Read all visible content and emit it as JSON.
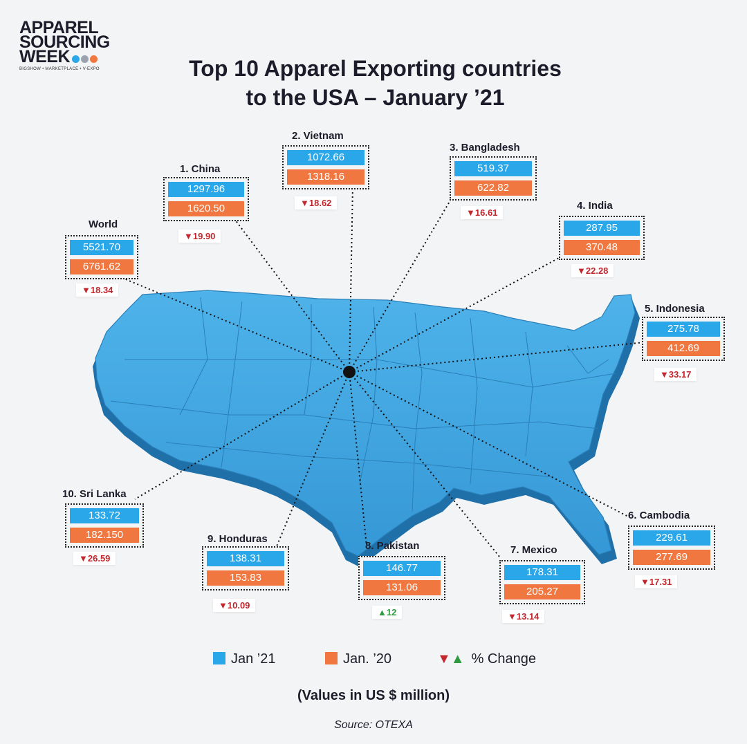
{
  "brand": {
    "line1": "APPAREL",
    "line2": "SOURCING",
    "line3": "WEEK",
    "tagline": "BIGSHOW • MARKETPLACE • V-EXPO",
    "dot_colors": [
      "#29a7e8",
      "#9aa3ad",
      "#f07840"
    ]
  },
  "title": {
    "line1": "Top 10 Apparel Exporting countries",
    "line2": "to the USA – January ’21"
  },
  "colors": {
    "jan21": "#29a7e8",
    "jan20": "#f07840",
    "decrease": "#c2272d",
    "increase": "#2e9b3e",
    "map": "#3aa0dc"
  },
  "chart_data": {
    "type": "table",
    "title": "Top 10 Apparel Exporting countries to the USA – January ’21",
    "units": "(Values in US $ million)",
    "series": [
      {
        "name": "Jan ’21"
      },
      {
        "name": "Jan. ’20"
      }
    ],
    "entries": [
      {
        "label": "World",
        "jan21": "5521.70",
        "jan20": "6761.62",
        "change": "18.34",
        "direction": "down"
      },
      {
        "label": "1. China",
        "jan21": "1297.96",
        "jan20": "1620.50",
        "change": "19.90",
        "direction": "down"
      },
      {
        "label": "2. Vietnam",
        "jan21": "1072.66",
        "jan20": "1318.16",
        "change": "18.62",
        "direction": "down"
      },
      {
        "label": "3. Bangladesh",
        "jan21": "519.37",
        "jan20": "622.82",
        "change": "16.61",
        "direction": "down"
      },
      {
        "label": "4. India",
        "jan21": "287.95",
        "jan20": "370.48",
        "change": "22.28",
        "direction": "down"
      },
      {
        "label": "5. Indonesia",
        "jan21": "275.78",
        "jan20": "412.69",
        "change": "33.17",
        "direction": "down"
      },
      {
        "label": "6. Cambodia",
        "jan21": "229.61",
        "jan20": "277.69",
        "change": "17.31",
        "direction": "down"
      },
      {
        "label": "7. Mexico",
        "jan21": "178.31",
        "jan20": "205.27",
        "change": "13.14",
        "direction": "down"
      },
      {
        "label": "8. Pakistan",
        "jan21": "146.77",
        "jan20": "131.06",
        "change": "12",
        "direction": "up"
      },
      {
        "label": "9. Honduras",
        "jan21": "138.31",
        "jan20": "153.83",
        "change": "10.09",
        "direction": "down"
      },
      {
        "label": "10. Sri Lanka",
        "jan21": "133.72",
        "jan20": "182.150",
        "change": "26.59",
        "direction": "down"
      }
    ]
  },
  "legend": {
    "jan21": "Jan ’21",
    "jan20": "Jan. ’20",
    "change": "% Change"
  },
  "source": "Source: OTEXA"
}
